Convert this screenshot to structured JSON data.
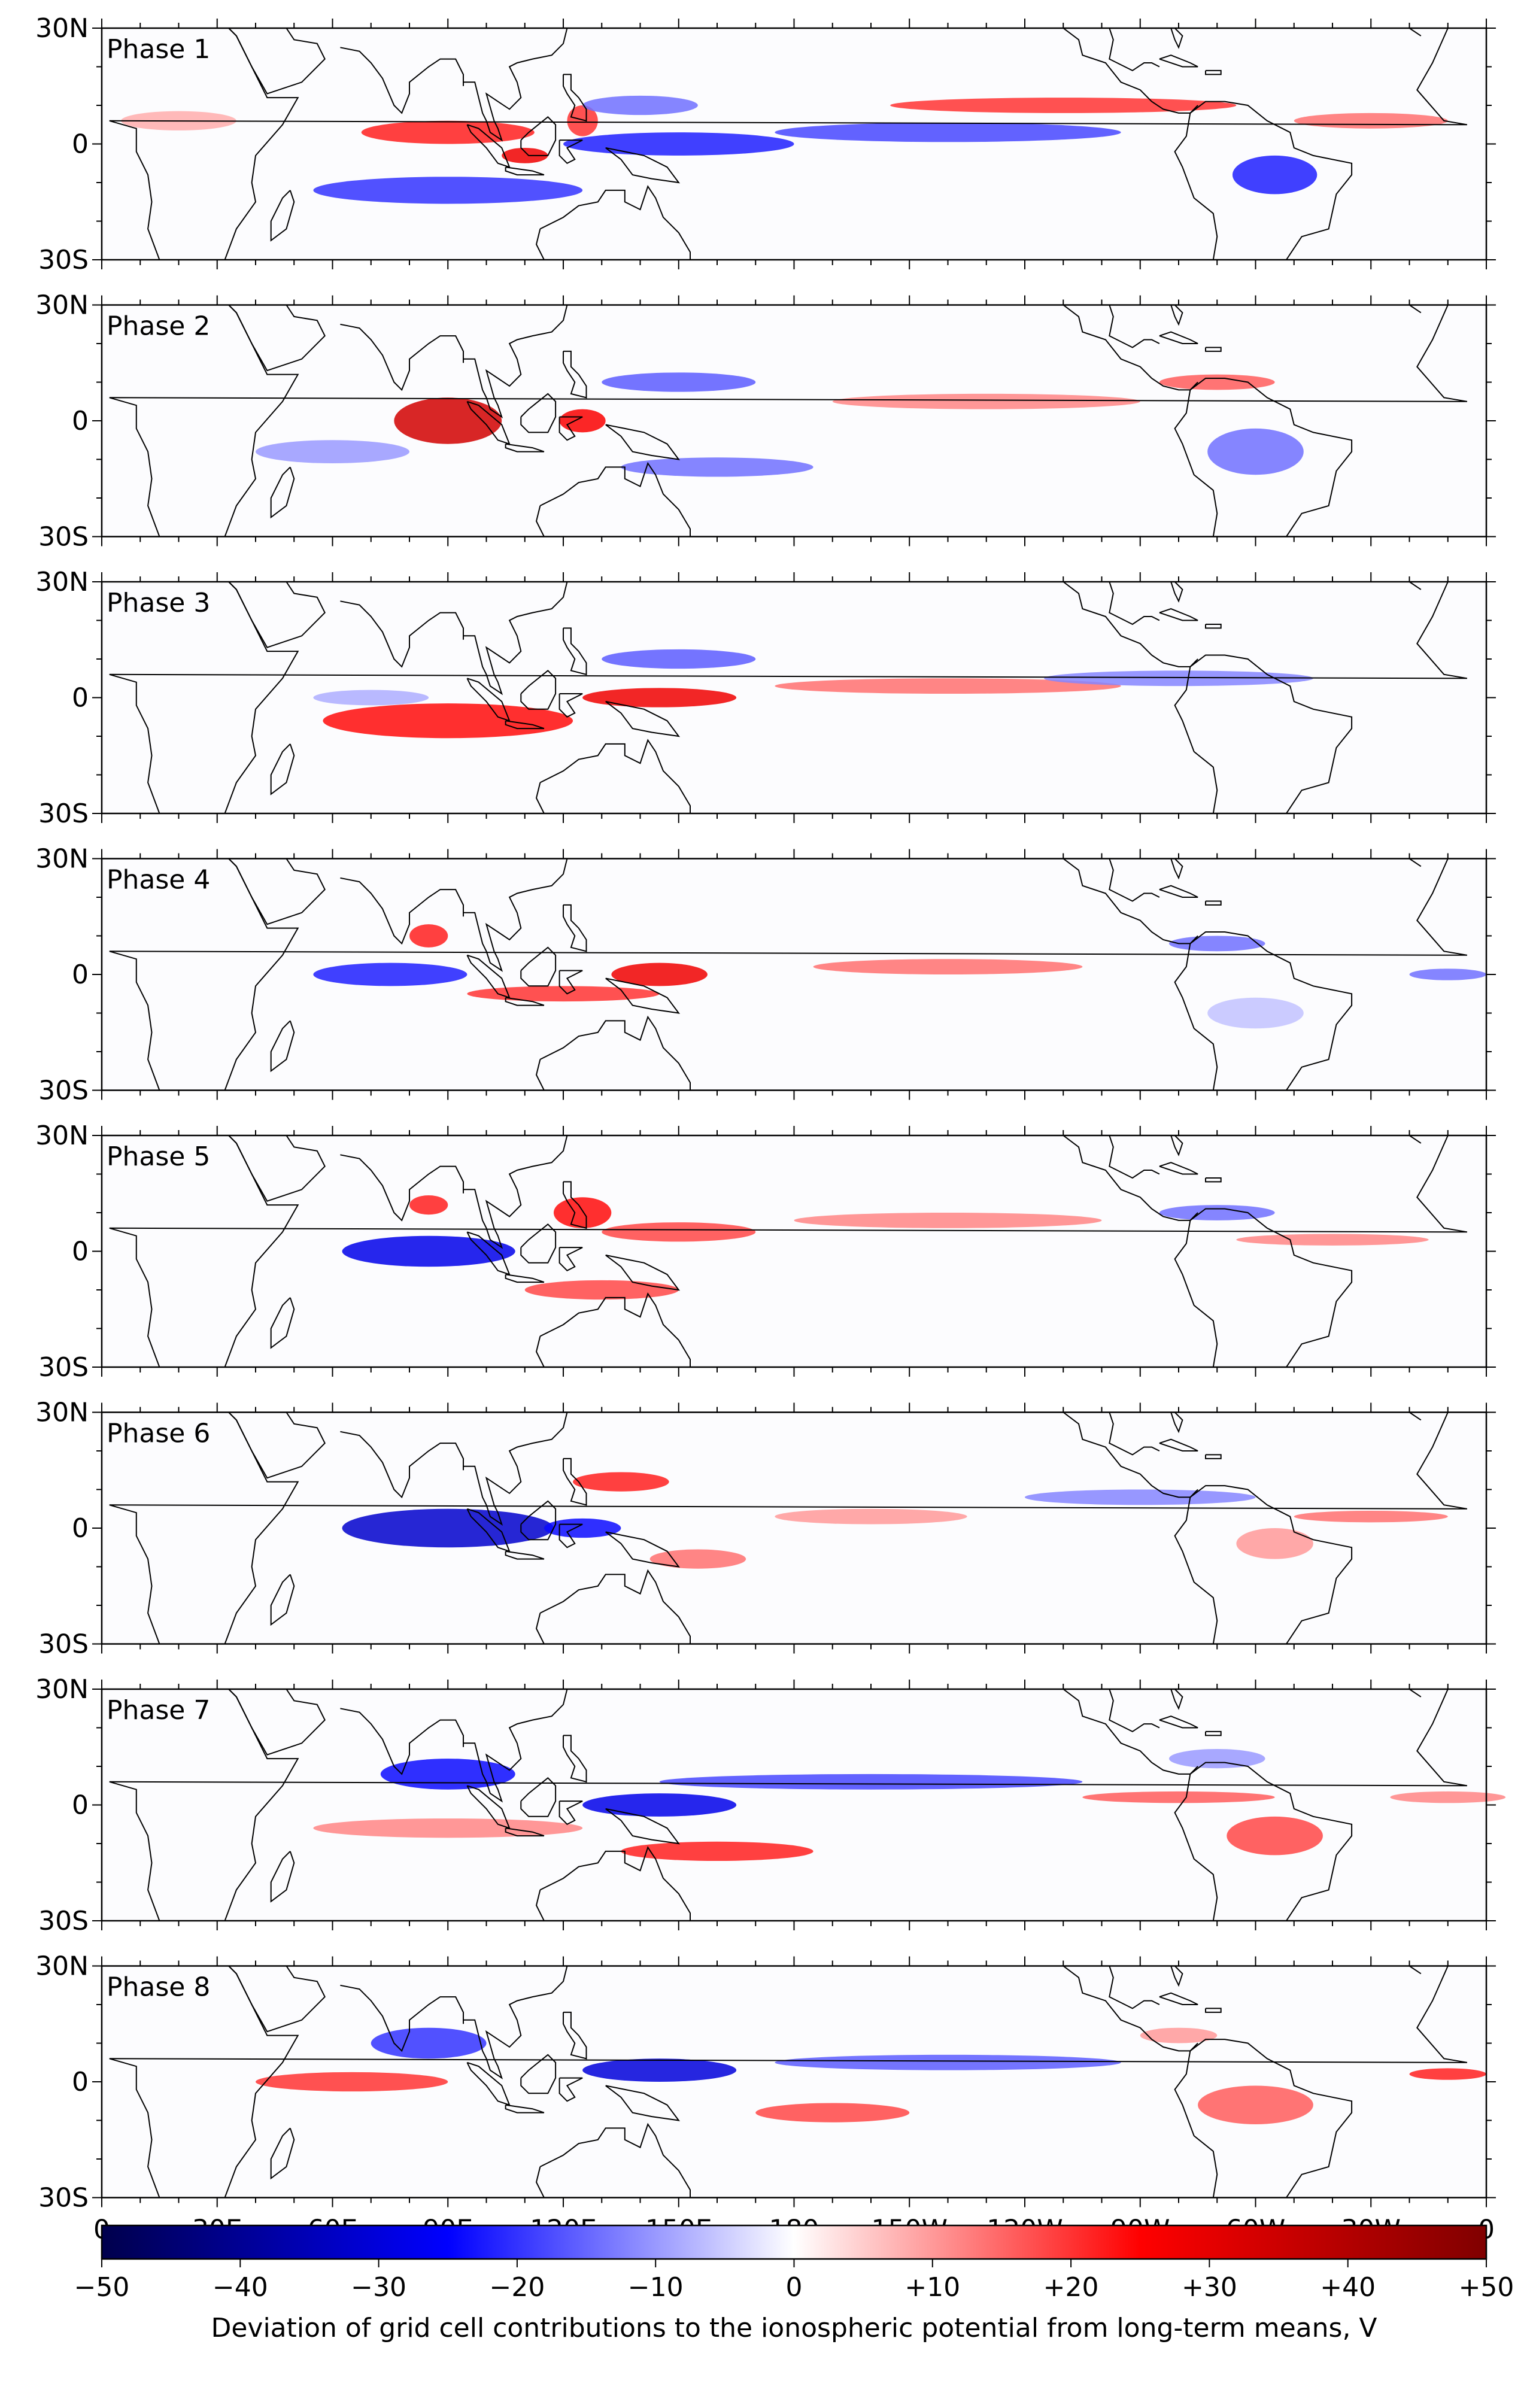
{
  "chart_data": {
    "type": "heatmap",
    "layout": "stacked small multiples",
    "panels": [
      {
        "label": "Phase 1",
        "features": [
          {
            "lon": 90,
            "lat": 3,
            "w": 45,
            "h": 6,
            "v": 22
          },
          {
            "lon": 110,
            "lat": -3,
            "w": 12,
            "h": 4,
            "v": 28
          },
          {
            "lon": 125,
            "lat": 6,
            "w": 8,
            "h": 8,
            "v": 20
          },
          {
            "lon": 90,
            "lat": -12,
            "w": 70,
            "h": 7,
            "v": -20
          },
          {
            "lon": 150,
            "lat": 0,
            "w": 60,
            "h": 6,
            "v": -22
          },
          {
            "lon": 220,
            "lat": 3,
            "w": 90,
            "h": 5,
            "v": -18
          },
          {
            "lon": 305,
            "lat": -8,
            "w": 22,
            "h": 10,
            "v": -22
          },
          {
            "lon": 250,
            "lat": 10,
            "w": 90,
            "h": 4,
            "v": 20
          },
          {
            "lon": 330,
            "lat": 6,
            "w": 40,
            "h": 4,
            "v": 14
          },
          {
            "lon": 140,
            "lat": 10,
            "w": 30,
            "h": 5,
            "v": -14
          },
          {
            "lon": 20,
            "lat": 6,
            "w": 30,
            "h": 5,
            "v": 8
          }
        ]
      },
      {
        "label": "Phase 2",
        "features": [
          {
            "lon": 90,
            "lat": 0,
            "w": 28,
            "h": 12,
            "v": 34
          },
          {
            "lon": 125,
            "lat": 0,
            "w": 12,
            "h": 6,
            "v": 26
          },
          {
            "lon": 160,
            "lat": -12,
            "w": 50,
            "h": 5,
            "v": -14
          },
          {
            "lon": 150,
            "lat": 10,
            "w": 40,
            "h": 5,
            "v": -16
          },
          {
            "lon": 300,
            "lat": -8,
            "w": 25,
            "h": 12,
            "v": -14
          },
          {
            "lon": 230,
            "lat": 5,
            "w": 80,
            "h": 4,
            "v": 12
          },
          {
            "lon": 290,
            "lat": 10,
            "w": 30,
            "h": 4,
            "v": 16
          },
          {
            "lon": 60,
            "lat": -8,
            "w": 40,
            "h": 6,
            "v": -10
          }
        ]
      },
      {
        "label": "Phase 3",
        "features": [
          {
            "lon": 90,
            "lat": -6,
            "w": 65,
            "h": 9,
            "v": 24
          },
          {
            "lon": 145,
            "lat": 0,
            "w": 40,
            "h": 5,
            "v": 28
          },
          {
            "lon": 220,
            "lat": 3,
            "w": 90,
            "h": 4,
            "v": 14
          },
          {
            "lon": 150,
            "lat": 10,
            "w": 40,
            "h": 5,
            "v": -16
          },
          {
            "lon": 280,
            "lat": 5,
            "w": 70,
            "h": 4,
            "v": -12
          },
          {
            "lon": 70,
            "lat": 0,
            "w": 30,
            "h": 4,
            "v": -8
          }
        ]
      },
      {
        "label": "Phase 4",
        "features": [
          {
            "lon": 75,
            "lat": 0,
            "w": 40,
            "h": 6,
            "v": -22
          },
          {
            "lon": 85,
            "lat": 10,
            "w": 10,
            "h": 6,
            "v": 22
          },
          {
            "lon": 120,
            "lat": -5,
            "w": 50,
            "h": 4,
            "v": 20
          },
          {
            "lon": 145,
            "lat": 0,
            "w": 25,
            "h": 6,
            "v": 28
          },
          {
            "lon": 220,
            "lat": 2,
            "w": 70,
            "h": 4,
            "v": 14
          },
          {
            "lon": 290,
            "lat": 8,
            "w": 25,
            "h": 4,
            "v": -14
          },
          {
            "lon": 350,
            "lat": 0,
            "w": 20,
            "h": 3,
            "v": -14
          },
          {
            "lon": 300,
            "lat": -10,
            "w": 25,
            "h": 8,
            "v": -6
          }
        ]
      },
      {
        "label": "Phase 5",
        "features": [
          {
            "lon": 85,
            "lat": 0,
            "w": 45,
            "h": 8,
            "v": -28
          },
          {
            "lon": 85,
            "lat": 12,
            "w": 10,
            "h": 5,
            "v": 22
          },
          {
            "lon": 125,
            "lat": 10,
            "w": 15,
            "h": 8,
            "v": 24
          },
          {
            "lon": 150,
            "lat": 5,
            "w": 40,
            "h": 5,
            "v": 18
          },
          {
            "lon": 130,
            "lat": -10,
            "w": 40,
            "h": 5,
            "v": 18
          },
          {
            "lon": 220,
            "lat": 8,
            "w": 80,
            "h": 4,
            "v": 12
          },
          {
            "lon": 290,
            "lat": 10,
            "w": 30,
            "h": 4,
            "v": -14
          },
          {
            "lon": 320,
            "lat": 3,
            "w": 50,
            "h": 3,
            "v": 12
          }
        ]
      },
      {
        "label": "Phase 6",
        "features": [
          {
            "lon": 90,
            "lat": 0,
            "w": 55,
            "h": 10,
            "v": -32
          },
          {
            "lon": 125,
            "lat": 0,
            "w": 20,
            "h": 5,
            "v": -24
          },
          {
            "lon": 135,
            "lat": 12,
            "w": 25,
            "h": 5,
            "v": 22
          },
          {
            "lon": 155,
            "lat": -8,
            "w": 25,
            "h": 5,
            "v": 14
          },
          {
            "lon": 270,
            "lat": 8,
            "w": 60,
            "h": 4,
            "v": -12
          },
          {
            "lon": 305,
            "lat": -4,
            "w": 20,
            "h": 8,
            "v": 10
          },
          {
            "lon": 330,
            "lat": 3,
            "w": 40,
            "h": 3,
            "v": 14
          },
          {
            "lon": 200,
            "lat": 3,
            "w": 50,
            "h": 4,
            "v": 10
          }
        ]
      },
      {
        "label": "Phase 7",
        "features": [
          {
            "lon": 90,
            "lat": 8,
            "w": 35,
            "h": 8,
            "v": -24
          },
          {
            "lon": 145,
            "lat": 0,
            "w": 40,
            "h": 6,
            "v": -28
          },
          {
            "lon": 200,
            "lat": 6,
            "w": 110,
            "h": 4,
            "v": -18
          },
          {
            "lon": 160,
            "lat": -12,
            "w": 50,
            "h": 5,
            "v": 22
          },
          {
            "lon": 90,
            "lat": -6,
            "w": 70,
            "h": 5,
            "v": 12
          },
          {
            "lon": 305,
            "lat": -8,
            "w": 25,
            "h": 10,
            "v": 18
          },
          {
            "lon": 280,
            "lat": 2,
            "w": 50,
            "h": 3,
            "v": 16
          },
          {
            "lon": 350,
            "lat": 2,
            "w": 30,
            "h": 3,
            "v": 12
          },
          {
            "lon": 290,
            "lat": 12,
            "w": 25,
            "h": 5,
            "v": -10
          }
        ]
      },
      {
        "label": "Phase 8",
        "features": [
          {
            "lon": 85,
            "lat": 10,
            "w": 30,
            "h": 8,
            "v": -20
          },
          {
            "lon": 145,
            "lat": 3,
            "w": 40,
            "h": 6,
            "v": -30
          },
          {
            "lon": 220,
            "lat": 5,
            "w": 90,
            "h": 4,
            "v": -16
          },
          {
            "lon": 65,
            "lat": 0,
            "w": 50,
            "h": 5,
            "v": 20
          },
          {
            "lon": 190,
            "lat": -8,
            "w": 40,
            "h": 5,
            "v": 18
          },
          {
            "lon": 300,
            "lat": -6,
            "w": 30,
            "h": 10,
            "v": 16
          },
          {
            "lon": 350,
            "lat": 2,
            "w": 20,
            "h": 3,
            "v": 22
          },
          {
            "lon": 280,
            "lat": 12,
            "w": 20,
            "h": 4,
            "v": 10
          }
        ]
      }
    ],
    "x_ticks": [
      "0",
      "30E",
      "60E",
      "90E",
      "120E",
      "150E",
      "180",
      "150W",
      "120W",
      "90W",
      "60W",
      "30W",
      "0"
    ],
    "y_ticks": [
      "30N",
      "0",
      "30S"
    ],
    "xlim": [
      0,
      360
    ],
    "ylim": [
      -30,
      30
    ],
    "colorbar": {
      "ticks": [
        "−50",
        "−40",
        "−30",
        "−20",
        "−10",
        "0",
        "+10",
        "+20",
        "+30",
        "+40",
        "+50"
      ],
      "range": [
        -50,
        50
      ],
      "label": "Deviation of grid cell contributions to the ionospheric potential from long-term means, V",
      "colors": [
        "#00004c",
        "#0000ff",
        "#ffffff",
        "#ff0000",
        "#800000"
      ]
    },
    "coastline_color": "#000000",
    "grid": false
  }
}
